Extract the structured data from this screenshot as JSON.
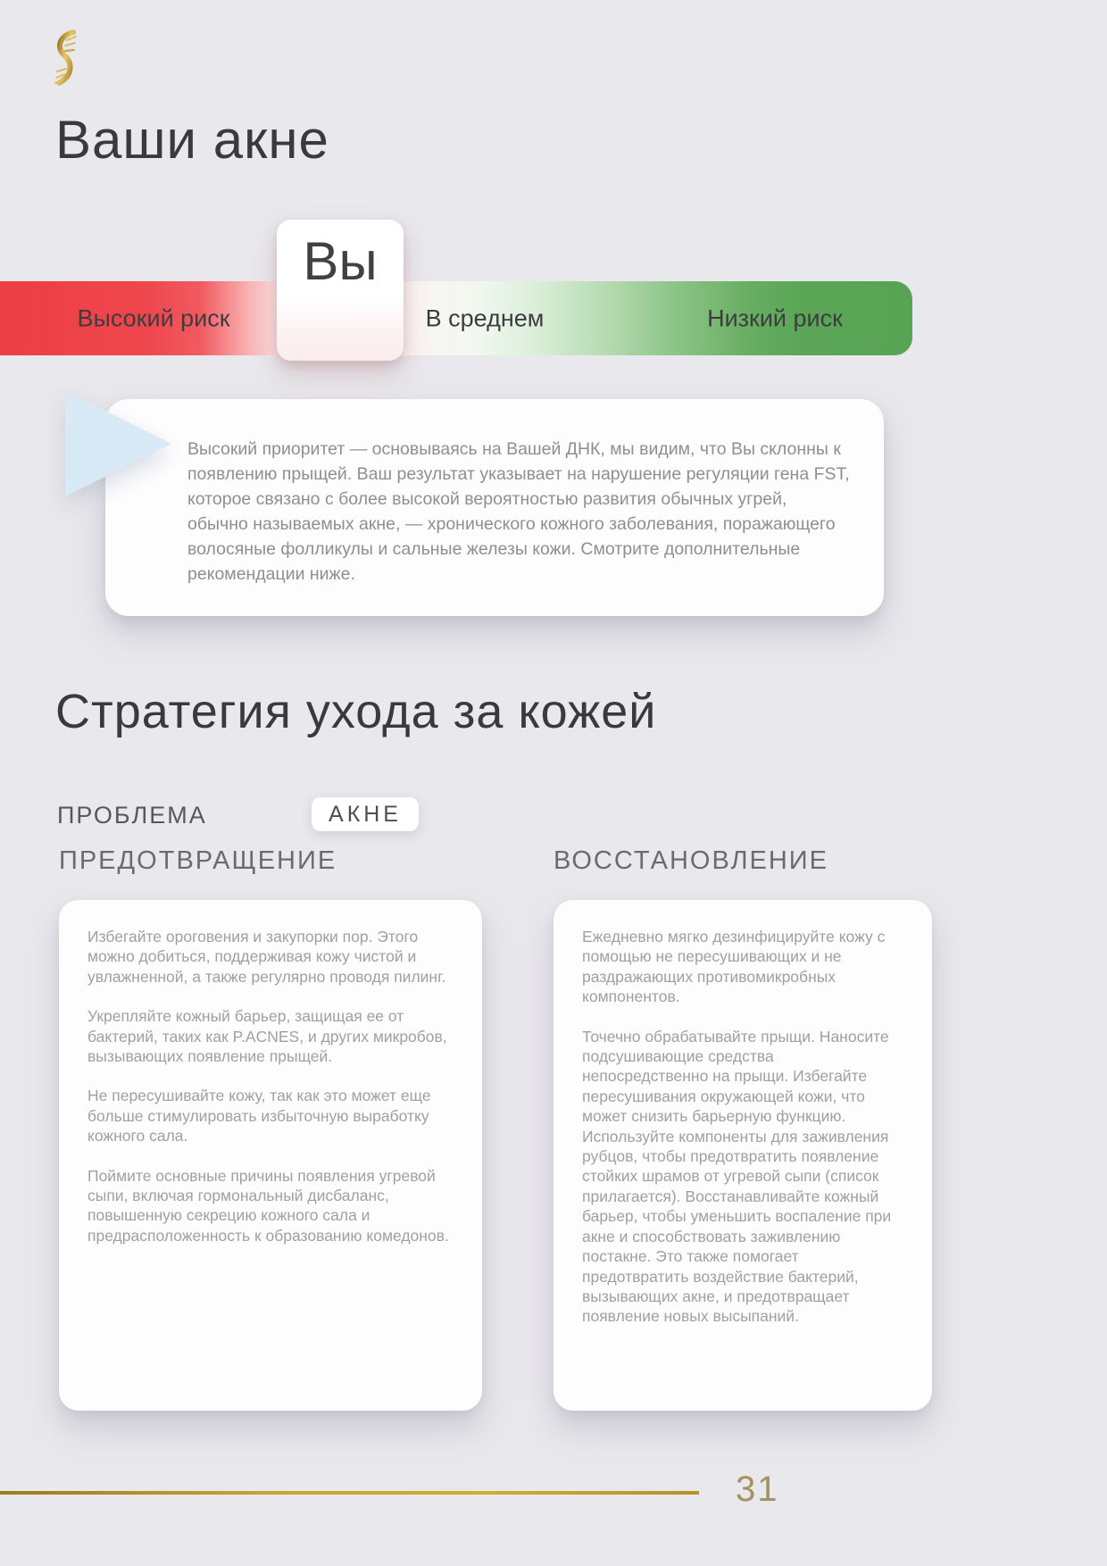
{
  "page": {
    "background": "#e9e8ec",
    "accent_gold": "#b8962e"
  },
  "header": {
    "title": "Ваши акне"
  },
  "risk_scale": {
    "marker_label": "Вы",
    "labels": {
      "high": "Высокий риск",
      "mid": "В среднем",
      "low": "Низкий риск"
    },
    "colors": {
      "high_risk": "#ee4348",
      "low_risk": "#58a455"
    }
  },
  "callout": {
    "text": "Высокий приоритет — основываясь на Вашей ДНК, мы видим, что Вы склонны к появлению прыщей. Ваш результат указывает на нарушение регуляции гена FST, которое связано с более высокой вероятностью развития обычных угрей, обычно называемых акне, — хронического кожного заболевания, поражающего волосяные фолликулы и сальные железы кожи. Смотрите дополнительные рекомендации ниже."
  },
  "strategy": {
    "title": "Стратегия ухода за кожей",
    "problem_label": "ПРОБЛЕМА",
    "problem_value": "АКНЕ",
    "prevention": {
      "header": "ПРЕДОТВРАЩЕНИЕ",
      "paragraphs": [
        "Избегайте ороговения и закупорки пор. Этого можно добиться, поддерживая кожу чистой и увлажненной, а также регулярно проводя пилинг.",
        "Укрепляйте кожный барьер, защищая ее от бактерий, таких как P.ACNES, и других микробов, вызывающих появление прыщей.",
        "Не пересушивайте кожу, так как это может еще больше стимулировать избыточную выработку кожного сала.",
        "Поймите основные причины появления угревой сыпи, включая гормональный дисбаланс, повышенную секрецию кожного сала и предрасположенность к образованию комедонов."
      ]
    },
    "recovery": {
      "header": "ВОССТАНОВЛЕНИЕ",
      "paragraphs": [
        "Ежедневно мягко дезинфицируйте кожу с помощью не пересушивающих и не раздражающих противомикробных компонентов.",
        "Точечно обрабатывайте прыщи. Наносите подсушивающие средства непосредственно на прыщи. Избегайте пересушивания окружающей кожи, что может снизить барьерную функцию. Используйте компоненты для заживления рубцов, чтобы предотвратить появление стойких шрамов от угревой сыпи (список прилагается). Восстанавливайте кожный барьер, чтобы уменьшить воспаление при акне и способствовать заживлению постакне. Это также помогает предотвратить воздействие бактерий, вызывающих акне, и предотвращает появление новых высыпаний."
      ]
    }
  },
  "footer": {
    "page_number": "31"
  }
}
